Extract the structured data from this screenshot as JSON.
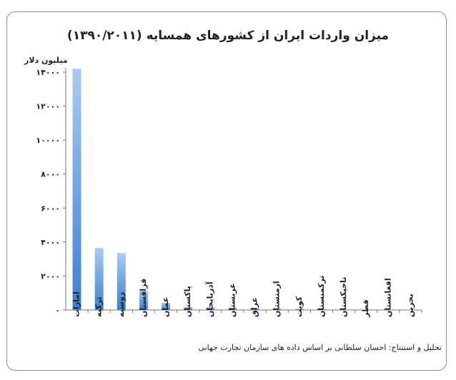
{
  "chart_data": {
    "type": "bar",
    "title": "میزان واردات ایران از کشورهای همسایه (۱۳۹۰/۲۰۱۱)",
    "ylabel": "میلیون دلار",
    "ylim": [
      0,
      14000
    ],
    "yticks": [
      0,
      2000,
      4000,
      6000,
      8000,
      10000,
      12000,
      14000
    ],
    "ytick_labels": [
      "۰",
      "۲۰۰۰",
      "۴۰۰۰",
      "۶۰۰۰",
      "۸۰۰۰",
      "۱۰۰۰۰",
      "۱۲۰۰۰",
      "۱۴۰۰۰"
    ],
    "categories": [
      "امارات",
      "ترکیه",
      "روسیه",
      "قزاقستان",
      "عمان",
      "پاکستان",
      "آذربایجان",
      "عربستان",
      "عراق",
      "ارمنستان",
      "کویت",
      "ترکمنستان",
      "تاجیکستان",
      "قطر",
      "افغانستان",
      "بحرین"
    ],
    "values": [
      14200,
      3650,
      3350,
      1150,
      420,
      170,
      160,
      140,
      110,
      90,
      75,
      55,
      25,
      20,
      15,
      5
    ],
    "grid": false,
    "legend": "none",
    "bar_color_top": "#a8cbf3",
    "bar_color_bottom": "#3c7fd0"
  },
  "credits": {
    "line1": "تحلیل و استنتاج: احسان سلطانی بر اساس داده های سازمان تجارت جهانی",
    "line2": "تحلیل و استنتاج: احسان سلطانی بر اساس داده های سازمان تجارت جهانی"
  }
}
